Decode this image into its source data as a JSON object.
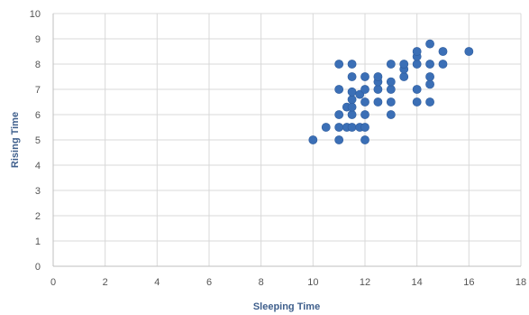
{
  "chart_data": {
    "type": "scatter",
    "title": "",
    "xlabel": "Sleeping Time",
    "ylabel": "Rising Time",
    "xlim": [
      0,
      18
    ],
    "ylim": [
      0,
      10
    ],
    "x_ticks": [
      0,
      2,
      4,
      6,
      8,
      10,
      12,
      14,
      16,
      18
    ],
    "y_ticks": [
      0,
      1,
      2,
      3,
      4,
      5,
      6,
      7,
      8,
      9,
      10
    ],
    "grid": true,
    "legend": "none",
    "marker_color": "#3b6fb6",
    "series": [
      {
        "points": [
          [
            10,
            5
          ],
          [
            10.5,
            5.5
          ],
          [
            11,
            5
          ],
          [
            11,
            5.5
          ],
          [
            11,
            6
          ],
          [
            11,
            7
          ],
          [
            11,
            8
          ],
          [
            11.3,
            6.3
          ],
          [
            11.3,
            5.5
          ],
          [
            11.5,
            5.5
          ],
          [
            11.5,
            6
          ],
          [
            11.5,
            6.3
          ],
          [
            11.5,
            6.6
          ],
          [
            11.5,
            6.9
          ],
          [
            11.5,
            7.5
          ],
          [
            11.5,
            8
          ],
          [
            11.8,
            5.5
          ],
          [
            11.8,
            6.8
          ],
          [
            12,
            5
          ],
          [
            12,
            5.5
          ],
          [
            12,
            6
          ],
          [
            12,
            6.5
          ],
          [
            12,
            7
          ],
          [
            12,
            7.5
          ],
          [
            12.5,
            6.5
          ],
          [
            12.5,
            7
          ],
          [
            12.5,
            7.3
          ],
          [
            12.5,
            7.5
          ],
          [
            13,
            6
          ],
          [
            13,
            6.5
          ],
          [
            13,
            7
          ],
          [
            13,
            7.3
          ],
          [
            13,
            8
          ],
          [
            13.5,
            7.5
          ],
          [
            13.5,
            7.8
          ],
          [
            13.5,
            8
          ],
          [
            14,
            6.5
          ],
          [
            14,
            7
          ],
          [
            14,
            8
          ],
          [
            14,
            8.3
          ],
          [
            14,
            8.5
          ],
          [
            14.5,
            6.5
          ],
          [
            14.5,
            7.2
          ],
          [
            14.5,
            7.5
          ],
          [
            14.5,
            8
          ],
          [
            14.5,
            8.8
          ],
          [
            15,
            8
          ],
          [
            15,
            8.5
          ],
          [
            16,
            8.5
          ]
        ]
      }
    ]
  }
}
